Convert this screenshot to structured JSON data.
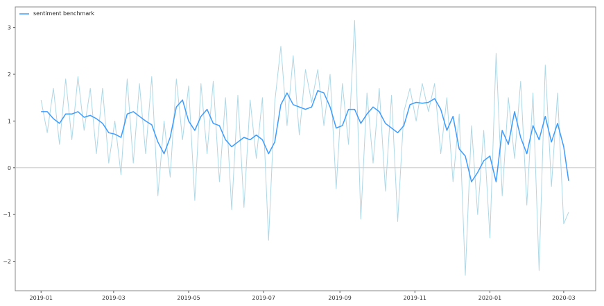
{
  "chart_data": {
    "type": "line",
    "title": "",
    "xlabel": "",
    "ylabel": "",
    "xlim": [
      "2018-12-11",
      "2020-03-27"
    ],
    "ylim": [
      -2.63,
      3.44
    ],
    "grid": false,
    "legend_position": "top-left",
    "zero_line": true,
    "x_ticks": [
      "2019-01",
      "2019-03",
      "2019-05",
      "2019-07",
      "2019-09",
      "2019-11",
      "2020-01",
      "2020-03"
    ],
    "y_ticks": [
      -2,
      -1,
      0,
      1,
      2,
      3
    ],
    "legend": [
      "sentiment benchmark"
    ],
    "colors": {
      "raw": "#add8e6",
      "smoothed": "#3c9cff",
      "legend": "#6fb5ff",
      "zero_line": "#c8c8c8"
    },
    "x": [
      "2019-01-01",
      "2019-01-06",
      "2019-01-11",
      "2019-01-16",
      "2019-01-21",
      "2019-01-26",
      "2019-01-31",
      "2019-02-05",
      "2019-02-10",
      "2019-02-15",
      "2019-02-20",
      "2019-02-25",
      "2019-03-02",
      "2019-03-07",
      "2019-03-12",
      "2019-03-17",
      "2019-03-22",
      "2019-03-27",
      "2019-04-01",
      "2019-04-06",
      "2019-04-11",
      "2019-04-16",
      "2019-04-21",
      "2019-04-26",
      "2019-05-01",
      "2019-05-06",
      "2019-05-11",
      "2019-05-16",
      "2019-05-21",
      "2019-05-26",
      "2019-05-31",
      "2019-06-05",
      "2019-06-10",
      "2019-06-15",
      "2019-06-20",
      "2019-06-25",
      "2019-06-30",
      "2019-07-05",
      "2019-07-10",
      "2019-07-15",
      "2019-07-20",
      "2019-07-25",
      "2019-07-30",
      "2019-08-04",
      "2019-08-09",
      "2019-08-14",
      "2019-08-19",
      "2019-08-24",
      "2019-08-29",
      "2019-09-03",
      "2019-09-08",
      "2019-09-13",
      "2019-09-18",
      "2019-09-23",
      "2019-09-28",
      "2019-10-03",
      "2019-10-08",
      "2019-10-13",
      "2019-10-18",
      "2019-10-23",
      "2019-10-28",
      "2019-11-02",
      "2019-11-07",
      "2019-11-12",
      "2019-11-17",
      "2019-11-22",
      "2019-11-27",
      "2019-12-02",
      "2019-12-07",
      "2019-12-12",
      "2019-12-17",
      "2019-12-22",
      "2019-12-27",
      "2020-01-01",
      "2020-01-06",
      "2020-01-11",
      "2020-01-16",
      "2020-01-21",
      "2020-01-26",
      "2020-01-31",
      "2020-02-05",
      "2020-02-10",
      "2020-02-15",
      "2020-02-20",
      "2020-02-25",
      "2020-03-01",
      "2020-03-05"
    ],
    "series": [
      {
        "role": "raw",
        "values": [
          1.45,
          0.75,
          1.7,
          0.5,
          1.9,
          0.6,
          1.95,
          0.8,
          1.7,
          0.3,
          1.7,
          0.1,
          1.0,
          -0.15,
          1.9,
          0.1,
          1.8,
          0.3,
          1.95,
          -0.6,
          1.0,
          -0.2,
          1.9,
          0.6,
          1.75,
          -0.7,
          1.8,
          0.3,
          1.85,
          -0.3,
          1.5,
          -0.9,
          1.55,
          -0.85,
          1.45,
          0.2,
          1.5,
          -1.55,
          1.4,
          2.6,
          0.9,
          2.4,
          0.7,
          2.1,
          1.4,
          2.1,
          0.9,
          2.0,
          -0.45,
          1.8,
          0.5,
          3.15,
          -1.1,
          1.6,
          0.1,
          1.7,
          -0.5,
          1.55,
          -1.15,
          1.2,
          1.7,
          1.0,
          1.8,
          1.2,
          1.8,
          0.3,
          1.5,
          -0.3,
          1.15,
          -2.3,
          0.9,
          -1.0,
          0.8,
          -1.5,
          2.45,
          -0.6,
          1.5,
          0.2,
          1.85,
          -0.8,
          1.6,
          -2.2,
          2.2,
          -0.4,
          1.6,
          -1.2,
          -0.95
        ]
      },
      {
        "name": "sentiment benchmark",
        "role": "smoothed",
        "values": [
          1.2,
          1.2,
          1.05,
          0.95,
          1.15,
          1.15,
          1.2,
          1.08,
          1.12,
          1.05,
          0.95,
          0.75,
          0.72,
          0.65,
          1.15,
          1.2,
          1.1,
          1.0,
          0.92,
          0.55,
          0.3,
          0.65,
          1.3,
          1.45,
          1.0,
          0.8,
          1.1,
          1.25,
          0.95,
          0.9,
          0.6,
          0.45,
          0.55,
          0.65,
          0.6,
          0.7,
          0.6,
          0.3,
          0.55,
          1.35,
          1.6,
          1.35,
          1.3,
          1.25,
          1.3,
          1.65,
          1.6,
          1.3,
          0.85,
          0.9,
          1.25,
          1.25,
          0.95,
          1.15,
          1.3,
          1.2,
          0.95,
          0.85,
          0.75,
          0.9,
          1.35,
          1.4,
          1.38,
          1.4,
          1.48,
          1.25,
          0.8,
          1.1,
          0.4,
          0.25,
          -0.3,
          -0.1,
          0.15,
          0.25,
          -0.3,
          0.8,
          0.5,
          1.2,
          0.65,
          0.3,
          0.9,
          0.6,
          1.1,
          0.55,
          0.95,
          0.45,
          -0.28
        ]
      }
    ]
  }
}
